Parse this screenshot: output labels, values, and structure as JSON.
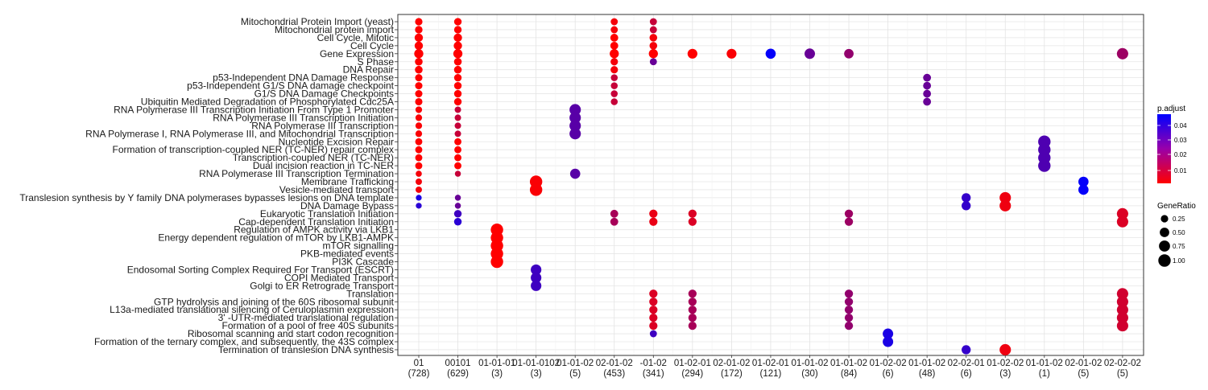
{
  "chart_data": {
    "type": "scatter",
    "grid": true,
    "y_categories": [
      "Mitochondrial Protein Import (yeast)",
      "Mitochondrial protein import",
      "Cell Cycle, Mitotic",
      "Cell Cycle",
      "Gene Expression",
      "S Phase",
      "DNA Repair",
      "p53-Independent DNA Damage Response",
      "p53-Independent G1/S DNA damage checkpoint",
      "G1/S DNA Damage Checkpoints",
      "Ubiquitin Mediated Degradation of Phosphorylated Cdc25A",
      "RNA Polymerase III Transcription Initiation From Type 1 Promoter",
      "RNA Polymerase III Transcription Initiation",
      "RNA Polymerase III Transcription",
      "RNA Polymerase I, RNA Polymerase III, and Mitochondrial Transcription",
      "Nucleotide Excision Repair",
      "Formation of transcription-coupled NER (TC-NER) repair complex",
      "Transcription-coupled NER (TC-NER)",
      "Dual incision reaction in TC-NER",
      "RNA Polymerase III Transcription Termination",
      "Membrane Trafficking",
      "Vesicle-mediated transport",
      "Translesion synthesis by Y family DNA polymerases bypasses lesions on DNA template",
      "DNA Damage Bypass",
      "Eukaryotic Translation Initiation",
      "Cap-dependent Translation Initiation",
      "Regulation of AMPK activity via LKB1",
      "Energy dependent regulation of mTOR by LKB1-AMPK",
      "mTOR signalling",
      "PKB-mediated events",
      "PI3K Cascade",
      "Endosomal Sorting Complex Required For Transport (ESCRT)",
      "COPI Mediated Transport",
      "Golgi to ER Retrograde Transport",
      "Translation",
      "GTP hydrolysis and joining of the 60S ribosomal subunit",
      "L13a-mediated translational silencing of Ceruloplasmin expression",
      "3' -UTR-mediated translational regulation",
      "Formation of a pool of free 40S subunits",
      "Ribosomal scanning and start codon recognition",
      "Formation of the ternary complex, and subsequently, the 43S complex",
      "Termination of translesion DNA synthesis"
    ],
    "x_categories": [
      {
        "label": "01",
        "count": "(728)"
      },
      {
        "label": "00101",
        "count": "(629)"
      },
      {
        "label": "01-01-01",
        "count": "(3)"
      },
      {
        "label": "01-01-0102",
        "count": "(3)"
      },
      {
        "label": "01-01-02",
        "count": "(5)"
      },
      {
        "label": "02-01-02",
        "count": "(453)"
      },
      {
        "label": "-01-02",
        "count": "(341)"
      },
      {
        "label": "01-02-01",
        "count": "(294)"
      },
      {
        "label": "02-01-02",
        "count": "(172)"
      },
      {
        "label": "01-02-01",
        "count": "(121)"
      },
      {
        "label": "01-01-02",
        "count": "(30)"
      },
      {
        "label": "01-01-02",
        "count": "(84)"
      },
      {
        "label": "01-02-02",
        "count": "(6)"
      },
      {
        "label": "01-01-02",
        "count": "(48)"
      },
      {
        "label": "02-02-01",
        "count": "(6)"
      },
      {
        "label": "01-02-02",
        "count": "(3)"
      },
      {
        "label": "01-01-02",
        "count": "(1)"
      },
      {
        "label": "02-01-02",
        "count": "(5)"
      },
      {
        "label": "02-02-02",
        "count": "(5)"
      }
    ],
    "points": [
      {
        "x": 0,
        "y": 0,
        "ratio": 0.25,
        "p": 0.001
      },
      {
        "x": 0,
        "y": 1,
        "ratio": 0.26,
        "p": 0.001
      },
      {
        "x": 0,
        "y": 2,
        "ratio": 0.35,
        "p": 0.001
      },
      {
        "x": 0,
        "y": 3,
        "ratio": 0.35,
        "p": 0.001
      },
      {
        "x": 0,
        "y": 4,
        "ratio": 0.45,
        "p": 0.001
      },
      {
        "x": 0,
        "y": 5,
        "ratio": 0.28,
        "p": 0.001
      },
      {
        "x": 0,
        "y": 6,
        "ratio": 0.28,
        "p": 0.001
      },
      {
        "x": 0,
        "y": 7,
        "ratio": 0.24,
        "p": 0.001
      },
      {
        "x": 0,
        "y": 8,
        "ratio": 0.24,
        "p": 0.001
      },
      {
        "x": 0,
        "y": 9,
        "ratio": 0.24,
        "p": 0.001
      },
      {
        "x": 0,
        "y": 10,
        "ratio": 0.24,
        "p": 0.001
      },
      {
        "x": 0,
        "y": 11,
        "ratio": 0.18,
        "p": 0.002
      },
      {
        "x": 0,
        "y": 12,
        "ratio": 0.18,
        "p": 0.002
      },
      {
        "x": 0,
        "y": 13,
        "ratio": 0.18,
        "p": 0.002
      },
      {
        "x": 0,
        "y": 14,
        "ratio": 0.18,
        "p": 0.002
      },
      {
        "x": 0,
        "y": 15,
        "ratio": 0.22,
        "p": 0.001
      },
      {
        "x": 0,
        "y": 16,
        "ratio": 0.22,
        "p": 0.001
      },
      {
        "x": 0,
        "y": 17,
        "ratio": 0.22,
        "p": 0.001
      },
      {
        "x": 0,
        "y": 18,
        "ratio": 0.22,
        "p": 0.001
      },
      {
        "x": 0,
        "y": 19,
        "ratio": 0.14,
        "p": 0.003
      },
      {
        "x": 0,
        "y": 20,
        "ratio": 0.16,
        "p": 0.003
      },
      {
        "x": 0,
        "y": 21,
        "ratio": 0.16,
        "p": 0.003
      },
      {
        "x": 0,
        "y": 22,
        "ratio": 0.12,
        "p": 0.045
      },
      {
        "x": 0,
        "y": 23,
        "ratio": 0.12,
        "p": 0.042
      },
      {
        "x": 1,
        "y": 0,
        "ratio": 0.26,
        "p": 0.001
      },
      {
        "x": 1,
        "y": 1,
        "ratio": 0.26,
        "p": 0.001
      },
      {
        "x": 1,
        "y": 2,
        "ratio": 0.35,
        "p": 0.001
      },
      {
        "x": 1,
        "y": 3,
        "ratio": 0.35,
        "p": 0.001
      },
      {
        "x": 1,
        "y": 4,
        "ratio": 0.45,
        "p": 0.001
      },
      {
        "x": 1,
        "y": 5,
        "ratio": 0.28,
        "p": 0.001
      },
      {
        "x": 1,
        "y": 6,
        "ratio": 0.28,
        "p": 0.001
      },
      {
        "x": 1,
        "y": 7,
        "ratio": 0.26,
        "p": 0.001
      },
      {
        "x": 1,
        "y": 8,
        "ratio": 0.26,
        "p": 0.001
      },
      {
        "x": 1,
        "y": 9,
        "ratio": 0.26,
        "p": 0.001
      },
      {
        "x": 1,
        "y": 10,
        "ratio": 0.26,
        "p": 0.001
      },
      {
        "x": 1,
        "y": 11,
        "ratio": 0.16,
        "p": 0.012
      },
      {
        "x": 1,
        "y": 12,
        "ratio": 0.16,
        "p": 0.012
      },
      {
        "x": 1,
        "y": 13,
        "ratio": 0.16,
        "p": 0.012
      },
      {
        "x": 1,
        "y": 14,
        "ratio": 0.16,
        "p": 0.012
      },
      {
        "x": 1,
        "y": 15,
        "ratio": 0.22,
        "p": 0.001
      },
      {
        "x": 1,
        "y": 16,
        "ratio": 0.22,
        "p": 0.001
      },
      {
        "x": 1,
        "y": 17,
        "ratio": 0.22,
        "p": 0.001
      },
      {
        "x": 1,
        "y": 18,
        "ratio": 0.22,
        "p": 0.001
      },
      {
        "x": 1,
        "y": 19,
        "ratio": 0.13,
        "p": 0.012
      },
      {
        "x": 1,
        "y": 22,
        "ratio": 0.13,
        "p": 0.03
      },
      {
        "x": 1,
        "y": 23,
        "ratio": 0.13,
        "p": 0.03
      },
      {
        "x": 1,
        "y": 24,
        "ratio": 0.27,
        "p": 0.038
      },
      {
        "x": 1,
        "y": 25,
        "ratio": 0.27,
        "p": 0.042
      },
      {
        "x": 2,
        "y": 26,
        "ratio": 1.0,
        "p": 0.001
      },
      {
        "x": 2,
        "y": 27,
        "ratio": 1.0,
        "p": 0.001
      },
      {
        "x": 2,
        "y": 28,
        "ratio": 1.0,
        "p": 0.001
      },
      {
        "x": 2,
        "y": 29,
        "ratio": 1.0,
        "p": 0.001
      },
      {
        "x": 2,
        "y": 30,
        "ratio": 1.0,
        "p": 0.001
      },
      {
        "x": 3,
        "y": 20,
        "ratio": 1.0,
        "p": 0.002
      },
      {
        "x": 3,
        "y": 21,
        "ratio": 1.0,
        "p": 0.002
      },
      {
        "x": 3,
        "y": 31,
        "ratio": 0.67,
        "p": 0.038
      },
      {
        "x": 3,
        "y": 32,
        "ratio": 0.67,
        "p": 0.038
      },
      {
        "x": 3,
        "y": 33,
        "ratio": 0.67,
        "p": 0.038
      },
      {
        "x": 4,
        "y": 11,
        "ratio": 0.8,
        "p": 0.033
      },
      {
        "x": 4,
        "y": 12,
        "ratio": 0.8,
        "p": 0.033
      },
      {
        "x": 4,
        "y": 13,
        "ratio": 0.8,
        "p": 0.033
      },
      {
        "x": 4,
        "y": 14,
        "ratio": 0.8,
        "p": 0.033
      },
      {
        "x": 4,
        "y": 19,
        "ratio": 0.6,
        "p": 0.033
      },
      {
        "x": 5,
        "y": 0,
        "ratio": 0.22,
        "p": 0.003
      },
      {
        "x": 5,
        "y": 1,
        "ratio": 0.22,
        "p": 0.003
      },
      {
        "x": 5,
        "y": 2,
        "ratio": 0.3,
        "p": 0.001
      },
      {
        "x": 5,
        "y": 3,
        "ratio": 0.3,
        "p": 0.001
      },
      {
        "x": 5,
        "y": 4,
        "ratio": 0.45,
        "p": 0.001
      },
      {
        "x": 5,
        "y": 5,
        "ratio": 0.25,
        "p": 0.003
      },
      {
        "x": 5,
        "y": 6,
        "ratio": 0.25,
        "p": 0.003
      },
      {
        "x": 5,
        "y": 7,
        "ratio": 0.2,
        "p": 0.012
      },
      {
        "x": 5,
        "y": 8,
        "ratio": 0.2,
        "p": 0.012
      },
      {
        "x": 5,
        "y": 9,
        "ratio": 0.2,
        "p": 0.012
      },
      {
        "x": 5,
        "y": 10,
        "ratio": 0.2,
        "p": 0.012
      },
      {
        "x": 5,
        "y": 24,
        "ratio": 0.3,
        "p": 0.018
      },
      {
        "x": 5,
        "y": 25,
        "ratio": 0.3,
        "p": 0.018
      },
      {
        "x": 6,
        "y": 0,
        "ratio": 0.22,
        "p": 0.012
      },
      {
        "x": 6,
        "y": 1,
        "ratio": 0.22,
        "p": 0.012
      },
      {
        "x": 6,
        "y": 2,
        "ratio": 0.28,
        "p": 0.003
      },
      {
        "x": 6,
        "y": 3,
        "ratio": 0.28,
        "p": 0.003
      },
      {
        "x": 6,
        "y": 4,
        "ratio": 0.45,
        "p": 0.001
      },
      {
        "x": 6,
        "y": 5,
        "ratio": 0.22,
        "p": 0.03
      },
      {
        "x": 6,
        "y": 24,
        "ratio": 0.34,
        "p": 0.005
      },
      {
        "x": 6,
        "y": 25,
        "ratio": 0.34,
        "p": 0.005
      },
      {
        "x": 6,
        "y": 34,
        "ratio": 0.34,
        "p": 0.008
      },
      {
        "x": 6,
        "y": 35,
        "ratio": 0.34,
        "p": 0.008
      },
      {
        "x": 6,
        "y": 36,
        "ratio": 0.34,
        "p": 0.008
      },
      {
        "x": 6,
        "y": 37,
        "ratio": 0.34,
        "p": 0.008
      },
      {
        "x": 6,
        "y": 38,
        "ratio": 0.34,
        "p": 0.008
      },
      {
        "x": 6,
        "y": 39,
        "ratio": 0.22,
        "p": 0.038
      },
      {
        "x": 7,
        "y": 4,
        "ratio": 0.55,
        "p": 0.001
      },
      {
        "x": 7,
        "y": 24,
        "ratio": 0.34,
        "p": 0.008
      },
      {
        "x": 7,
        "y": 25,
        "ratio": 0.34,
        "p": 0.008
      },
      {
        "x": 7,
        "y": 34,
        "ratio": 0.34,
        "p": 0.018
      },
      {
        "x": 7,
        "y": 35,
        "ratio": 0.34,
        "p": 0.018
      },
      {
        "x": 7,
        "y": 36,
        "ratio": 0.34,
        "p": 0.018
      },
      {
        "x": 7,
        "y": 37,
        "ratio": 0.34,
        "p": 0.018
      },
      {
        "x": 7,
        "y": 38,
        "ratio": 0.34,
        "p": 0.018
      },
      {
        "x": 8,
        "y": 4,
        "ratio": 0.55,
        "p": 0.002
      },
      {
        "x": 9,
        "y": 4,
        "ratio": 0.6,
        "p": 0.049
      },
      {
        "x": 10,
        "y": 4,
        "ratio": 0.65,
        "p": 0.03
      },
      {
        "x": 11,
        "y": 4,
        "ratio": 0.5,
        "p": 0.022
      },
      {
        "x": 11,
        "y": 24,
        "ratio": 0.35,
        "p": 0.02
      },
      {
        "x": 11,
        "y": 25,
        "ratio": 0.35,
        "p": 0.02
      },
      {
        "x": 11,
        "y": 34,
        "ratio": 0.35,
        "p": 0.022
      },
      {
        "x": 11,
        "y": 35,
        "ratio": 0.35,
        "p": 0.022
      },
      {
        "x": 11,
        "y": 36,
        "ratio": 0.35,
        "p": 0.022
      },
      {
        "x": 11,
        "y": 37,
        "ratio": 0.35,
        "p": 0.022
      },
      {
        "x": 11,
        "y": 38,
        "ratio": 0.35,
        "p": 0.022
      },
      {
        "x": 12,
        "y": 39,
        "ratio": 0.65,
        "p": 0.045
      },
      {
        "x": 12,
        "y": 40,
        "ratio": 0.65,
        "p": 0.045
      },
      {
        "x": 13,
        "y": 7,
        "ratio": 0.3,
        "p": 0.03
      },
      {
        "x": 13,
        "y": 8,
        "ratio": 0.3,
        "p": 0.03
      },
      {
        "x": 13,
        "y": 9,
        "ratio": 0.3,
        "p": 0.03
      },
      {
        "x": 13,
        "y": 10,
        "ratio": 0.3,
        "p": 0.03
      },
      {
        "x": 14,
        "y": 22,
        "ratio": 0.45,
        "p": 0.04
      },
      {
        "x": 14,
        "y": 23,
        "ratio": 0.45,
        "p": 0.04
      },
      {
        "x": 14,
        "y": 41,
        "ratio": 0.45,
        "p": 0.04
      },
      {
        "x": 15,
        "y": 22,
        "ratio": 0.8,
        "p": 0.004
      },
      {
        "x": 15,
        "y": 23,
        "ratio": 0.8,
        "p": 0.004
      },
      {
        "x": 15,
        "y": 41,
        "ratio": 0.8,
        "p": 0.004
      },
      {
        "x": 16,
        "y": 15,
        "ratio": 1.0,
        "p": 0.035
      },
      {
        "x": 16,
        "y": 16,
        "ratio": 1.0,
        "p": 0.035
      },
      {
        "x": 16,
        "y": 17,
        "ratio": 1.0,
        "p": 0.035
      },
      {
        "x": 16,
        "y": 18,
        "ratio": 1.0,
        "p": 0.035
      },
      {
        "x": 17,
        "y": 20,
        "ratio": 0.6,
        "p": 0.049
      },
      {
        "x": 17,
        "y": 21,
        "ratio": 0.6,
        "p": 0.049
      },
      {
        "x": 18,
        "y": 4,
        "ratio": 0.8,
        "p": 0.02
      },
      {
        "x": 18,
        "y": 24,
        "ratio": 0.8,
        "p": 0.008
      },
      {
        "x": 18,
        "y": 25,
        "ratio": 0.8,
        "p": 0.008
      },
      {
        "x": 18,
        "y": 34,
        "ratio": 0.8,
        "p": 0.01
      },
      {
        "x": 18,
        "y": 35,
        "ratio": 0.8,
        "p": 0.01
      },
      {
        "x": 18,
        "y": 36,
        "ratio": 0.8,
        "p": 0.01
      },
      {
        "x": 18,
        "y": 37,
        "ratio": 0.8,
        "p": 0.01
      },
      {
        "x": 18,
        "y": 38,
        "ratio": 0.8,
        "p": 0.01
      }
    ],
    "legend": {
      "color_title": "p.adjust",
      "color_ticks": [
        "0.04",
        "0.03",
        "0.02",
        "0.01"
      ],
      "color_low": "#ff0000",
      "color_high": "#0000ff",
      "size_title": "GeneRatio",
      "size_ticks": [
        "0.25",
        "0.50",
        "0.75",
        "1.00"
      ]
    },
    "legend_position": "right"
  }
}
